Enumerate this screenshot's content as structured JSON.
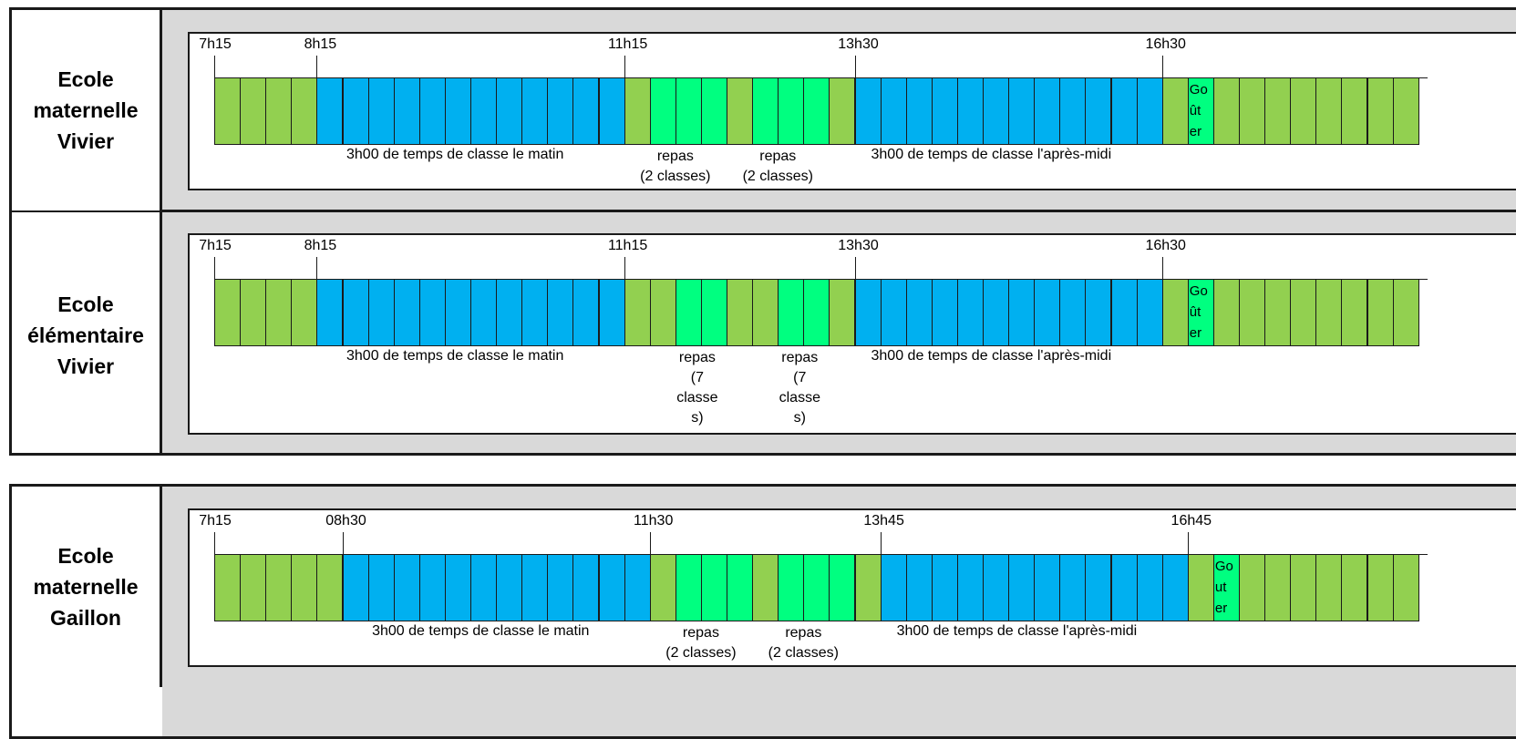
{
  "panels": [
    {
      "rows": [
        {
          "school": [
            "Ecole",
            "maternelle",
            "Vivier"
          ],
          "times": [
            "7h15",
            "8h15",
            "11h15",
            "13h30",
            "16h30"
          ],
          "morning_caption": "3h00 de temps de classe le matin",
          "afternoon_caption": "3h00 de temps de classe l'après-midi",
          "repas": [
            [
              "repas",
              "(2 classes)"
            ],
            [
              "repas",
              "(2 classes)"
            ]
          ],
          "gouter": [
            "Go",
            "ût",
            "er"
          ],
          "cells": [
            "g",
            "g",
            "g",
            "g",
            "b",
            "b",
            "b",
            "b",
            "b",
            "b",
            "b",
            "b",
            "b",
            "b",
            "b",
            "b",
            "g",
            "x",
            "x",
            "x",
            "g",
            "x",
            "x",
            "x",
            "g",
            "b",
            "b",
            "b",
            "b",
            "b",
            "b",
            "b",
            "b",
            "b",
            "b",
            "b",
            "b",
            "g",
            "x",
            "g",
            "g",
            "g",
            "g",
            "g",
            "g",
            "g",
            "g"
          ]
        },
        {
          "school": [
            "Ecole",
            "élémentaire",
            "Vivier"
          ],
          "times": [
            "7h15",
            "8h15",
            "11h15",
            "13h30",
            "16h30"
          ],
          "morning_caption": "3h00 de temps de classe le matin",
          "afternoon_caption": "3h00 de temps de classe l'après-midi",
          "repas": [
            [
              "repas",
              "(7",
              "classe",
              "s)"
            ],
            [
              "repas",
              "(7",
              "classe",
              "s)"
            ]
          ],
          "gouter": [
            "Go",
            "ût",
            "er"
          ],
          "cells": [
            "g",
            "g",
            "g",
            "g",
            "b",
            "b",
            "b",
            "b",
            "b",
            "b",
            "b",
            "b",
            "b",
            "b",
            "b",
            "b",
            "g",
            "g",
            "x",
            "x",
            "g",
            "g",
            "x",
            "x",
            "g",
            "b",
            "b",
            "b",
            "b",
            "b",
            "b",
            "b",
            "b",
            "b",
            "b",
            "b",
            "b",
            "g",
            "x",
            "g",
            "g",
            "g",
            "g",
            "g",
            "g",
            "g",
            "g"
          ]
        }
      ]
    },
    {
      "rows": [
        {
          "school": [
            "Ecole",
            "maternelle",
            "Gaillon"
          ],
          "times": [
            "7h15",
            "08h30",
            "11h30",
            "13h45",
            "16h45"
          ],
          "morning_caption": "3h00 de temps de classe le matin",
          "afternoon_caption": "3h00 de temps de classe l'après-midi",
          "repas": [
            [
              "repas",
              "(2 classes)"
            ],
            [
              "repas",
              "(2 classes)"
            ]
          ],
          "gouter": [
            "Go",
            "ut",
            "er"
          ],
          "cells": [
            "g",
            "g",
            "g",
            "g",
            "g",
            "b",
            "b",
            "b",
            "b",
            "b",
            "b",
            "b",
            "b",
            "b",
            "b",
            "b",
            "b",
            "g",
            "x",
            "x",
            "x",
            "g",
            "x",
            "x",
            "x",
            "g",
            "b",
            "b",
            "b",
            "b",
            "b",
            "b",
            "b",
            "b",
            "b",
            "b",
            "b",
            "b",
            "g",
            "x",
            "g",
            "g",
            "g",
            "g",
            "g",
            "g",
            "g"
          ]
        }
      ]
    }
  ],
  "colors": {
    "garderie": "#92d050",
    "classe": "#00b0f0",
    "repas": "#00ff80",
    "background": "#d9d9d9"
  }
}
